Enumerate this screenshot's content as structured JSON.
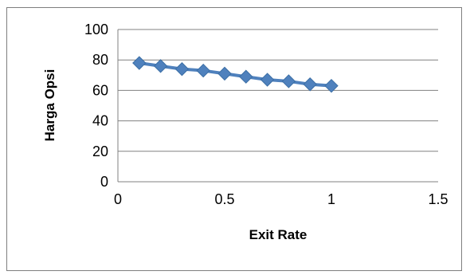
{
  "chart_data": {
    "type": "line",
    "title": "",
    "xlabel": "Exit Rate",
    "ylabel": "Harga Opsi",
    "xlim": [
      0,
      1.5
    ],
    "ylim": [
      0,
      100
    ],
    "x_ticks": [
      "0",
      "0.5",
      "1",
      "1.5"
    ],
    "y_ticks": [
      "0",
      "20",
      "40",
      "60",
      "80",
      "100"
    ],
    "grid": "horizontal",
    "legend": "none",
    "marker": "diamond",
    "series": [
      {
        "color": "#4f81bd",
        "x": [
          0.1,
          0.2,
          0.3,
          0.4,
          0.5,
          0.6,
          0.7,
          0.8,
          0.9,
          1.0
        ],
        "y": [
          78,
          76,
          74,
          73,
          71,
          69,
          67,
          66,
          64,
          63
        ]
      }
    ]
  },
  "colors": {
    "series": "#4f81bd",
    "gridline": "#808080",
    "frame": "#7f7f7f"
  }
}
